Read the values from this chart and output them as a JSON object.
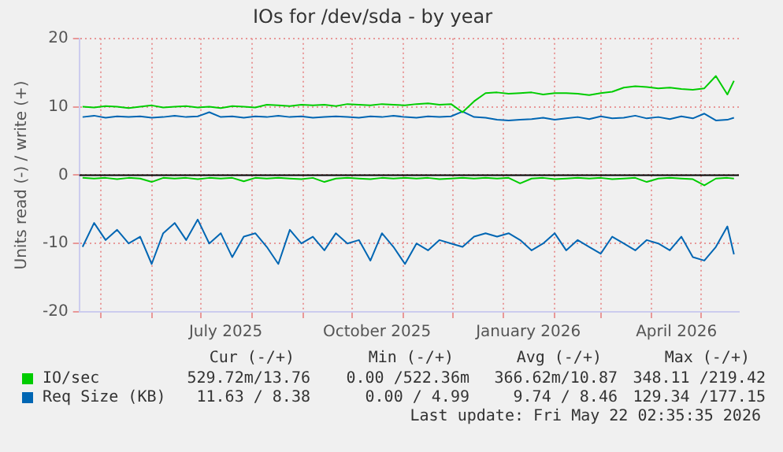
{
  "chart_data": {
    "type": "line",
    "title": "IOs for /dev/sda - by year",
    "ylabel": "Units read (-) / write (+)",
    "x": [
      "2025-04-20",
      "2025-04-27",
      "2025-05-04",
      "2025-05-11",
      "2025-05-18",
      "2025-05-25",
      "2025-06-01",
      "2025-06-08",
      "2025-06-15",
      "2025-06-22",
      "2025-06-29",
      "2025-07-06",
      "2025-07-13",
      "2025-07-20",
      "2025-07-27",
      "2025-08-03",
      "2025-08-10",
      "2025-08-17",
      "2025-08-24",
      "2025-08-31",
      "2025-09-07",
      "2025-09-14",
      "2025-09-21",
      "2025-09-28",
      "2025-10-05",
      "2025-10-12",
      "2025-10-19",
      "2025-10-26",
      "2025-11-02",
      "2025-11-09",
      "2025-11-16",
      "2025-11-23",
      "2025-11-30",
      "2025-12-07",
      "2025-12-14",
      "2025-12-21",
      "2025-12-28",
      "2026-01-04",
      "2026-01-11",
      "2026-01-18",
      "2026-01-25",
      "2026-02-01",
      "2026-02-08",
      "2026-02-15",
      "2026-02-22",
      "2026-03-01",
      "2026-03-08",
      "2026-03-15",
      "2026-03-22",
      "2026-03-29",
      "2026-04-05",
      "2026-04-12",
      "2026-04-19",
      "2026-04-26",
      "2026-05-03",
      "2026-05-10",
      "2026-05-17",
      "2026-05-21"
    ],
    "series": [
      {
        "name": "IO/sec",
        "color": "#00cc00",
        "values": [
          10.0,
          9.9,
          10.1,
          10.0,
          9.8,
          10.0,
          10.2,
          9.9,
          10.0,
          10.1,
          9.9,
          10.0,
          9.8,
          10.1,
          10.0,
          9.9,
          10.3,
          10.2,
          10.1,
          10.3,
          10.2,
          10.3,
          10.1,
          10.4,
          10.3,
          10.2,
          10.4,
          10.3,
          10.2,
          10.4,
          10.5,
          10.3,
          10.4,
          9.2,
          10.8,
          12.0,
          12.1,
          11.9,
          12.0,
          12.1,
          11.8,
          12.0,
          12.0,
          11.9,
          11.7,
          12.0,
          12.2,
          12.8,
          13.0,
          12.9,
          12.7,
          12.8,
          12.6,
          12.5,
          12.7,
          14.5,
          11.8,
          13.8
        ]
      },
      {
        "color": "#00cc00",
        "values": [
          -0.4,
          -0.5,
          -0.4,
          -0.6,
          -0.4,
          -0.5,
          -1.0,
          -0.4,
          -0.5,
          -0.4,
          -0.6,
          -0.4,
          -0.5,
          -0.4,
          -0.9,
          -0.4,
          -0.5,
          -0.4,
          -0.5,
          -0.6,
          -0.4,
          -1.0,
          -0.5,
          -0.4,
          -0.5,
          -0.6,
          -0.4,
          -0.5,
          -0.4,
          -0.5,
          -0.4,
          -0.6,
          -0.5,
          -0.4,
          -0.5,
          -0.4,
          -0.5,
          -0.4,
          -1.2,
          -0.5,
          -0.4,
          -0.6,
          -0.5,
          -0.4,
          -0.5,
          -0.4,
          -0.6,
          -0.5,
          -0.4,
          -1.0,
          -0.5,
          -0.4,
          -0.5,
          -0.6,
          -1.5,
          -0.5,
          -0.4,
          -0.5
        ]
      },
      {
        "name": "Req Size (KB)",
        "color": "#0066b3",
        "values": [
          8.5,
          8.7,
          8.4,
          8.6,
          8.5,
          8.6,
          8.4,
          8.5,
          8.7,
          8.5,
          8.6,
          9.2,
          8.5,
          8.6,
          8.4,
          8.6,
          8.5,
          8.7,
          8.5,
          8.6,
          8.4,
          8.5,
          8.6,
          8.5,
          8.4,
          8.6,
          8.5,
          8.7,
          8.5,
          8.4,
          8.6,
          8.5,
          8.6,
          9.3,
          8.5,
          8.4,
          8.1,
          8.0,
          8.1,
          8.2,
          8.4,
          8.1,
          8.3,
          8.5,
          8.2,
          8.6,
          8.3,
          8.4,
          8.7,
          8.3,
          8.5,
          8.2,
          8.6,
          8.3,
          9.0,
          8.0,
          8.1,
          8.4
        ]
      },
      {
        "color": "#0066b3",
        "values": [
          -10.5,
          -7.0,
          -9.5,
          -8.0,
          -10.0,
          -9.0,
          -13.0,
          -8.5,
          -7.0,
          -9.5,
          -6.5,
          -10.0,
          -8.5,
          -12.0,
          -9.0,
          -8.5,
          -10.5,
          -13.0,
          -8.0,
          -10.0,
          -9.0,
          -11.0,
          -8.5,
          -10.0,
          -9.5,
          -12.5,
          -8.5,
          -10.5,
          -13.0,
          -10.0,
          -11.0,
          -9.5,
          -10.0,
          -10.5,
          -9.0,
          -8.5,
          -9.0,
          -8.5,
          -9.5,
          -11.0,
          -10.0,
          -8.5,
          -11.0,
          -9.5,
          -10.5,
          -11.5,
          -9.0,
          -10.0,
          -11.0,
          -9.5,
          -10.0,
          -11.0,
          -9.0,
          -12.0,
          -12.5,
          -10.5,
          -7.5,
          -11.6
        ]
      }
    ],
    "xlim": [
      "2025-04-18",
      "2026-05-24"
    ],
    "xticks": [
      {
        "value": "2025-05-01",
        "label": null
      },
      {
        "value": "2025-06-01",
        "label": null
      },
      {
        "value": "2025-07-01",
        "label": null
      },
      {
        "value": "2025-07-16",
        "label": "July 2025"
      },
      {
        "value": "2025-08-01",
        "label": null
      },
      {
        "value": "2025-09-01",
        "label": null
      },
      {
        "value": "2025-10-01",
        "label": null
      },
      {
        "value": "2025-10-16",
        "label": "October 2025"
      },
      {
        "value": "2025-11-01",
        "label": null
      },
      {
        "value": "2025-12-01",
        "label": null
      },
      {
        "value": "2026-01-01",
        "label": null
      },
      {
        "value": "2026-01-16",
        "label": "January 2026"
      },
      {
        "value": "2026-02-01",
        "label": null
      },
      {
        "value": "2026-03-01",
        "label": null
      },
      {
        "value": "2026-04-01",
        "label": null
      },
      {
        "value": "2026-04-16",
        "label": "April 2026"
      },
      {
        "value": "2026-05-01",
        "label": null
      }
    ],
    "ylim": [
      -20,
      20
    ],
    "yticks": [
      -20,
      -10,
      0,
      10,
      20
    ],
    "ref_lines": [
      {
        "axis": "y",
        "value": 0,
        "color": "#000000"
      }
    ],
    "grid": true,
    "legend": "bottom",
    "marker": "none",
    "line_style": "solid",
    "annotations": [
      "Cur (-/+)",
      "Min (-/+)",
      "Avg (-/+)",
      "Max (-/+)",
      "529.72m/13.76",
      "0.00 /522.36m",
      "366.62m/10.87",
      "348.11 /219.42",
      "11.63 / 8.38",
      "0.00 / 4.99",
      "9.74 / 8.46",
      "129.34 /177.15",
      "Last update: Fri May 22 02:35:35 2026"
    ]
  }
}
